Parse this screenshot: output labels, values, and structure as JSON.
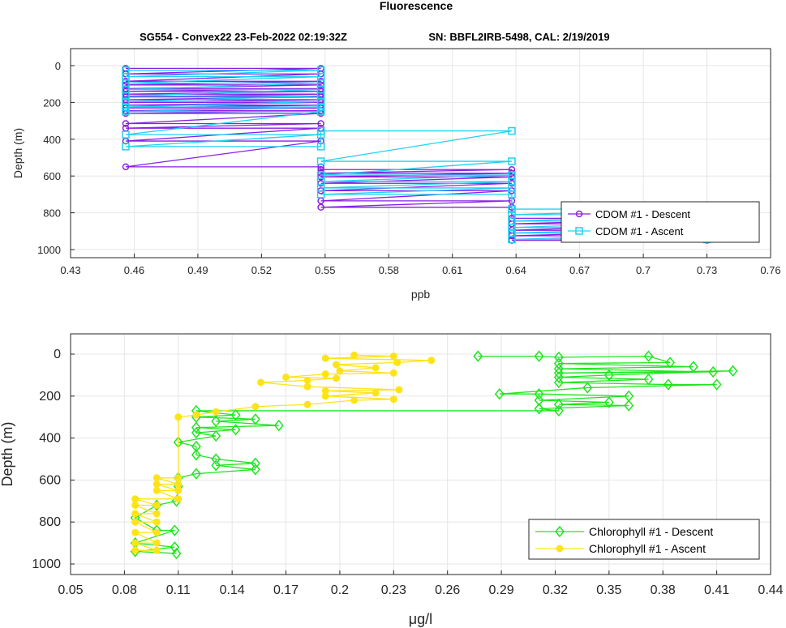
{
  "figure": {
    "title": "Fluorescence",
    "subtitle_left": "SG554 - Convex22 23-Feb-2022 02:19:32Z",
    "subtitle_right": "SN: BBFL2IRB-5498, CAL: 2/19/2019"
  },
  "chart_data": [
    {
      "type": "line",
      "xlabel": "ppb",
      "ylabel": "Depth (m)",
      "xlim": [
        0.43,
        0.76
      ],
      "ylim": [
        0,
        1000
      ],
      "y_reversed": true,
      "xticks": [
        "0.43",
        "0.46",
        "0.49",
        "0.52",
        "0.55",
        "0.58",
        "0.61",
        "0.64",
        "0.67",
        "0.7",
        "0.73",
        "0.76"
      ],
      "yticks": [
        "0",
        "200",
        "400",
        "600",
        "800",
        "1000"
      ],
      "grid": true,
      "legend_position": "bottom-right",
      "series": [
        {
          "name": "CDOM #1 - Descent",
          "color": "#8b1ee6",
          "marker": "circle",
          "points": [
            [
              0.456,
              15
            ],
            [
              0.548,
              15
            ],
            [
              0.456,
              45
            ],
            [
              0.548,
              45
            ],
            [
              0.456,
              85
            ],
            [
              0.548,
              85
            ],
            [
              0.456,
              105
            ],
            [
              0.548,
              105
            ],
            [
              0.456,
              125
            ],
            [
              0.548,
              125
            ],
            [
              0.456,
              140
            ],
            [
              0.548,
              140
            ],
            [
              0.456,
              155
            ],
            [
              0.548,
              155
            ],
            [
              0.456,
              170
            ],
            [
              0.548,
              170
            ],
            [
              0.456,
              185
            ],
            [
              0.548,
              185
            ],
            [
              0.456,
              200
            ],
            [
              0.548,
              200
            ],
            [
              0.456,
              215
            ],
            [
              0.548,
              215
            ],
            [
              0.456,
              230
            ],
            [
              0.548,
              230
            ],
            [
              0.456,
              245
            ],
            [
              0.548,
              245
            ],
            [
              0.456,
              260
            ],
            [
              0.548,
              260
            ],
            [
              0.456,
              315
            ],
            [
              0.548,
              315
            ],
            [
              0.456,
              340
            ],
            [
              0.548,
              340
            ],
            [
              0.456,
              410
            ],
            [
              0.548,
              410
            ],
            [
              0.456,
              550
            ],
            [
              0.548,
              550
            ],
            [
              0.548,
              565
            ],
            [
              0.638,
              565
            ],
            [
              0.548,
              585
            ],
            [
              0.638,
              585
            ],
            [
              0.548,
              605
            ],
            [
              0.638,
              605
            ],
            [
              0.548,
              640
            ],
            [
              0.638,
              640
            ],
            [
              0.548,
              680
            ],
            [
              0.638,
              680
            ],
            [
              0.548,
              735
            ],
            [
              0.638,
              735
            ],
            [
              0.548,
              770
            ],
            [
              0.638,
              770
            ],
            [
              0.638,
              830
            ],
            [
              0.73,
              830
            ],
            [
              0.638,
              860
            ],
            [
              0.73,
              860
            ],
            [
              0.638,
              895
            ],
            [
              0.73,
              895
            ],
            [
              0.638,
              925
            ],
            [
              0.73,
              925
            ],
            [
              0.638,
              950
            ],
            [
              0.73,
              950
            ]
          ]
        },
        {
          "name": "CDOM #1 - Ascent",
          "color": "#1ed2f0",
          "marker": "square",
          "points": [
            [
              0.73,
              945
            ],
            [
              0.638,
              945
            ],
            [
              0.73,
              910
            ],
            [
              0.638,
              910
            ],
            [
              0.73,
              880
            ],
            [
              0.638,
              880
            ],
            [
              0.73,
              845
            ],
            [
              0.638,
              845
            ],
            [
              0.73,
              810
            ],
            [
              0.638,
              810
            ],
            [
              0.73,
              780
            ],
            [
              0.638,
              780
            ],
            [
              0.638,
              700
            ],
            [
              0.548,
              700
            ],
            [
              0.638,
              665
            ],
            [
              0.548,
              665
            ],
            [
              0.638,
              630
            ],
            [
              0.548,
              630
            ],
            [
              0.638,
              595
            ],
            [
              0.548,
              595
            ],
            [
              0.638,
              520
            ],
            [
              0.548,
              520
            ],
            [
              0.638,
              355
            ],
            [
              0.548,
              355
            ],
            [
              0.548,
              440
            ],
            [
              0.456,
              440
            ],
            [
              0.548,
              375
            ],
            [
              0.456,
              375
            ],
            [
              0.548,
              250
            ],
            [
              0.456,
              250
            ],
            [
              0.548,
              225
            ],
            [
              0.456,
              225
            ],
            [
              0.548,
              195
            ],
            [
              0.456,
              195
            ],
            [
              0.548,
              165
            ],
            [
              0.456,
              165
            ],
            [
              0.548,
              130
            ],
            [
              0.456,
              130
            ],
            [
              0.548,
              95
            ],
            [
              0.456,
              95
            ],
            [
              0.548,
              60
            ],
            [
              0.456,
              60
            ],
            [
              0.548,
              25
            ],
            [
              0.456,
              25
            ]
          ]
        }
      ]
    },
    {
      "type": "line",
      "xlabel": "μg/l",
      "ylabel": "Depth (m)",
      "xlim": [
        0.05,
        0.44
      ],
      "ylim": [
        0,
        1000
      ],
      "y_reversed": true,
      "xticks": [
        "0.05",
        "0.08",
        "0.11",
        "0.14",
        "0.17",
        "0.2",
        "0.23",
        "0.26",
        "0.29",
        "0.32",
        "0.35",
        "0.38",
        "0.41",
        "0.44"
      ],
      "yticks": [
        "0",
        "200",
        "400",
        "600",
        "800",
        "1000"
      ],
      "grid": true,
      "legend_position": "bottom-right",
      "series": [
        {
          "name": "Chlorophyll #1 - Descent",
          "color": "#1ee61e",
          "marker": "diamond",
          "points": [
            [
              0.277,
              10
            ],
            [
              0.311,
              10
            ],
            [
              0.322,
              15
            ],
            [
              0.372,
              10
            ],
            [
              0.384,
              40
            ],
            [
              0.322,
              45
            ],
            [
              0.397,
              60
            ],
            [
              0.322,
              70
            ],
            [
              0.408,
              85
            ],
            [
              0.322,
              90
            ],
            [
              0.419,
              80
            ],
            [
              0.35,
              100
            ],
            [
              0.322,
              110
            ],
            [
              0.372,
              120
            ],
            [
              0.322,
              135
            ],
            [
              0.383,
              145
            ],
            [
              0.41,
              145
            ],
            [
              0.338,
              160
            ],
            [
              0.289,
              190
            ],
            [
              0.311,
              190
            ],
            [
              0.361,
              200
            ],
            [
              0.311,
              220
            ],
            [
              0.35,
              230
            ],
            [
              0.322,
              240
            ],
            [
              0.361,
              245
            ],
            [
              0.311,
              260
            ],
            [
              0.322,
              270
            ],
            [
              0.12,
              270
            ],
            [
              0.142,
              290
            ],
            [
              0.12,
              300
            ],
            [
              0.153,
              310
            ],
            [
              0.131,
              320
            ],
            [
              0.166,
              340
            ],
            [
              0.12,
              350
            ],
            [
              0.142,
              360
            ],
            [
              0.12,
              375
            ],
            [
              0.131,
              390
            ],
            [
              0.11,
              420
            ],
            [
              0.12,
              440
            ],
            [
              0.12,
              480
            ],
            [
              0.131,
              500
            ],
            [
              0.153,
              520
            ],
            [
              0.131,
              530
            ],
            [
              0.153,
              550
            ],
            [
              0.12,
              570
            ],
            [
              0.11,
              590
            ],
            [
              0.11,
              630
            ],
            [
              0.109,
              700
            ],
            [
              0.098,
              720
            ],
            [
              0.086,
              780
            ],
            [
              0.098,
              840
            ],
            [
              0.108,
              840
            ],
            [
              0.086,
              900
            ],
            [
              0.108,
              920
            ],
            [
              0.086,
              940
            ],
            [
              0.109,
              950
            ]
          ]
        },
        {
          "name": "Chlorophyll #1 - Ascent",
          "color": "#ffe31a",
          "marker": "circle-filled",
          "points": [
            [
              0.086,
              935
            ],
            [
              0.098,
              935
            ],
            [
              0.086,
              900
            ],
            [
              0.098,
              900
            ],
            [
              0.086,
              850
            ],
            [
              0.098,
              850
            ],
            [
              0.086,
              800
            ],
            [
              0.098,
              800
            ],
            [
              0.086,
              760
            ],
            [
              0.098,
              760
            ],
            [
              0.086,
              720
            ],
            [
              0.098,
              720
            ],
            [
              0.086,
              690
            ],
            [
              0.11,
              690
            ],
            [
              0.098,
              650
            ],
            [
              0.11,
              650
            ],
            [
              0.098,
              620
            ],
            [
              0.11,
              620
            ],
            [
              0.098,
              590
            ],
            [
              0.11,
              590
            ],
            [
              0.11,
              300
            ],
            [
              0.12,
              290
            ],
            [
              0.131,
              275
            ],
            [
              0.153,
              250
            ],
            [
              0.182,
              240
            ],
            [
              0.208,
              220
            ],
            [
              0.23,
              215
            ],
            [
              0.192,
              200
            ],
            [
              0.22,
              185
            ],
            [
              0.192,
              175
            ],
            [
              0.233,
              170
            ],
            [
              0.182,
              155
            ],
            [
              0.156,
              135
            ],
            [
              0.182,
              125
            ],
            [
              0.198,
              115
            ],
            [
              0.17,
              110
            ],
            [
              0.192,
              95
            ],
            [
              0.23,
              90
            ],
            [
              0.2,
              80
            ],
            [
              0.22,
              65
            ],
            [
              0.198,
              50
            ],
            [
              0.232,
              40
            ],
            [
              0.251,
              30
            ],
            [
              0.192,
              20
            ],
            [
              0.23,
              10
            ],
            [
              0.208,
              5
            ]
          ]
        }
      ]
    }
  ]
}
